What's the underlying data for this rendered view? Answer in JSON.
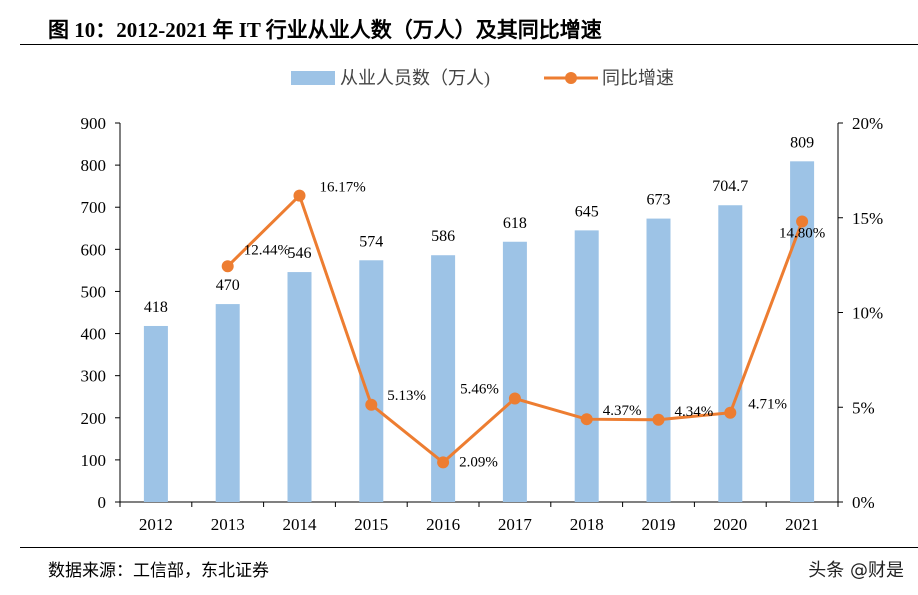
{
  "title": "图 10：2012-2021 年 IT 行业从业人数（万人）及其同比增速",
  "source": "数据来源：工信部，东北证券",
  "watermark": "头条 @财是",
  "colors": {
    "bar": "#9DC3E6",
    "line": "#ED7D31"
  },
  "chart_data": {
    "type": "bar+line",
    "categories": [
      "2012",
      "2013",
      "2014",
      "2015",
      "2016",
      "2017",
      "2018",
      "2019",
      "2020",
      "2021"
    ],
    "series": [
      {
        "name": "从业人员数（万人)",
        "type": "bar",
        "axis": "left",
        "values": [
          418,
          470,
          546,
          574,
          586,
          618,
          645,
          673,
          704.7,
          809
        ],
        "labels": [
          "418",
          "470",
          "546",
          "574",
          "586",
          "618",
          "645",
          "673",
          "704.7",
          "809"
        ]
      },
      {
        "name": "同比增速",
        "type": "line",
        "axis": "right",
        "values": [
          null,
          12.44,
          16.17,
          5.13,
          2.09,
          5.46,
          4.37,
          4.34,
          4.71,
          14.8
        ],
        "labels": [
          "",
          "12.44%",
          "16.17%",
          "5.13%",
          "2.09%",
          "5.46%",
          "4.37%",
          "4.34%",
          "4.71%",
          "14.80%"
        ]
      }
    ],
    "y_left": {
      "range": [
        0,
        900
      ],
      "ticks": [
        "0",
        "100",
        "200",
        "300",
        "400",
        "500",
        "600",
        "700",
        "800",
        "900"
      ]
    },
    "y_right": {
      "range": [
        0,
        20
      ],
      "ticks": [
        "0%",
        "5%",
        "10%",
        "15%",
        "20%"
      ]
    },
    "legend": "top",
    "grid": false
  }
}
